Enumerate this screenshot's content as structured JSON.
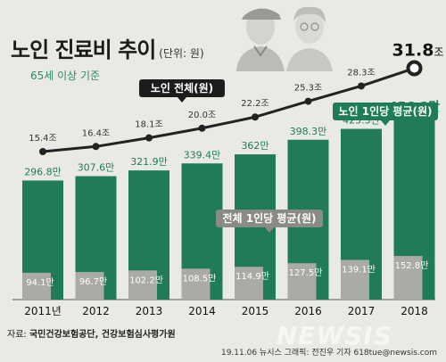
{
  "title": "노인 진료비 추이",
  "unit": "(단위: 원)",
  "subtitle": "65세 이상 기준",
  "source_label": "자료:",
  "source_text": "국민건강보험공단, 건강보험심사평가원",
  "credit": "19.11.06 뉴시스 그래픽: 전진우 기자 618tue@newsis.com",
  "watermark": "NEWSIS",
  "colors": {
    "background": "#eaeae5",
    "green_bar": "#1f7c57",
    "gray_bar": "#aaaaa6",
    "green_text": "#1f7c57",
    "line": "#222222",
    "label_box_dark": "#1c1c1c",
    "label_box_green": "#1f7c57",
    "label_box_gray": "#8a8a86"
  },
  "chart_data": [
    {
      "type": "line",
      "series_label": "노인 전체(원)",
      "categories": [
        "2011년",
        "2012",
        "2013",
        "2014",
        "2015",
        "2016",
        "2017",
        "2018"
      ],
      "values": [
        15.4,
        16.4,
        18.1,
        20.0,
        22.2,
        25.3,
        28.3,
        31.8
      ],
      "value_labels": [
        "15.4조",
        "16.4조",
        "18.1조",
        "20.0조",
        "22.2조",
        "25.3조",
        "28.3조",
        "31.8조"
      ],
      "last_label_main": "31.8",
      "last_label_suffix": "조"
    },
    {
      "type": "bar",
      "categories": [
        "2011년",
        "2012",
        "2013",
        "2014",
        "2015",
        "2016",
        "2017",
        "2018"
      ],
      "series": [
        {
          "name": "노인 1인당 평균(원)",
          "values": [
            296.8,
            307.6,
            321.9,
            339.4,
            362,
            398.3,
            425.5,
            456.8
          ],
          "value_labels": [
            "296.8만",
            "307.6만",
            "321.9만",
            "339.4만",
            "362만",
            "398.3만",
            "425.5만",
            "456.8만"
          ]
        },
        {
          "name": "전체 1인당 평균(원)",
          "values": [
            94.1,
            96.7,
            102.2,
            108.5,
            114.9,
            127.5,
            139.1,
            152.8
          ],
          "value_labels": [
            "94.1만",
            "96.7만",
            "102.2만",
            "108.5만",
            "114.9만",
            "127.5만",
            "139.1만",
            "152.8만"
          ]
        }
      ]
    }
  ]
}
